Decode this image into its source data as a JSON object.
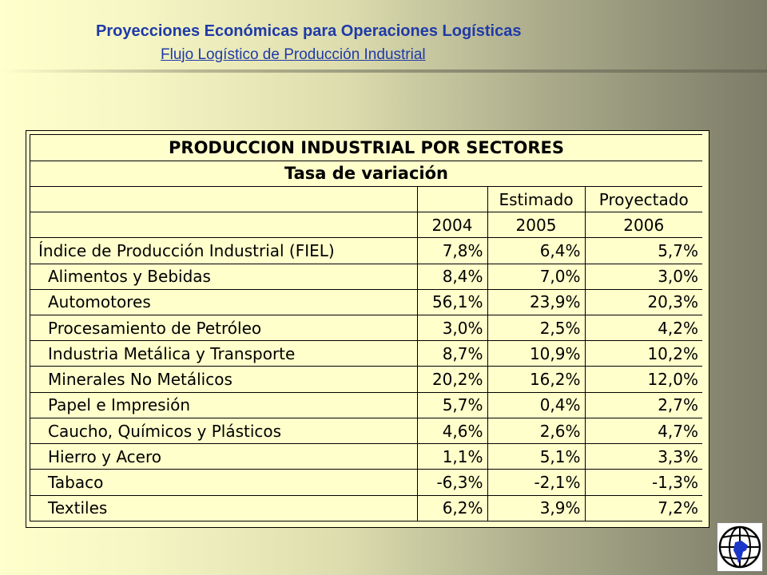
{
  "header": {
    "title": "Proyecciones Económicas para Operaciones Logísticas",
    "subtitle": "Flujo Logístico de Producción Industrial"
  },
  "table": {
    "title": "PRODUCCION INDUSTRIAL POR SECTORES",
    "subtitle": "Tasa de variación",
    "col_types": [
      "",
      "Estimado",
      "Proyectado"
    ],
    "years": [
      "2004",
      "2005",
      "2006"
    ],
    "rows": [
      {
        "label": "Índice de Producción Industrial (FIEL)",
        "values": [
          "7,8%",
          "6,4%",
          "5,7%"
        ]
      },
      {
        "label": "Alimentos y Bebidas",
        "values": [
          "8,4%",
          "7,0%",
          "3,0%"
        ]
      },
      {
        "label": "Automotores",
        "values": [
          "56,1%",
          "23,9%",
          "20,3%"
        ]
      },
      {
        "label": "Procesamiento de Petróleo",
        "values": [
          "3,0%",
          "2,5%",
          "4,2%"
        ]
      },
      {
        "label": "Industria Metálica y Transporte",
        "values": [
          "8,7%",
          "10,9%",
          "10,2%"
        ]
      },
      {
        "label": "Minerales No Metálicos",
        "values": [
          "20,2%",
          "16,2%",
          "12,0%"
        ]
      },
      {
        "label": "Papel e Impresión",
        "values": [
          "5,7%",
          "0,4%",
          "2,7%"
        ]
      },
      {
        "label": "Caucho, Químicos y Plásticos",
        "values": [
          "4,6%",
          "2,6%",
          "4,7%"
        ]
      },
      {
        "label": "Hierro y Acero",
        "values": [
          "1,1%",
          "5,1%",
          "3,3%"
        ]
      },
      {
        "label": "Tabaco",
        "values": [
          "-6,3%",
          "-2,1%",
          "-1,3%"
        ]
      },
      {
        "label": "Textiles",
        "values": [
          "6,2%",
          "3,9%",
          "7,2%"
        ]
      }
    ]
  },
  "colors": {
    "title": "#1f3aa8",
    "table_bg": "#ffffcc"
  },
  "logo": {
    "icon": "globe-map-icon"
  }
}
